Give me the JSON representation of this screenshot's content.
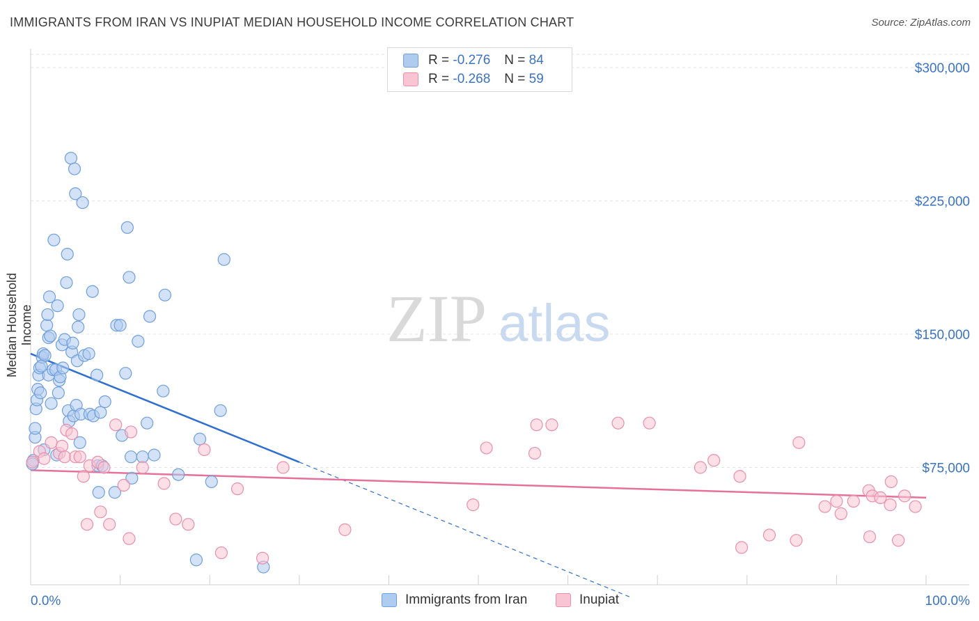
{
  "title": "IMMIGRANTS FROM IRAN VS INUPIAT MEDIAN HOUSEHOLD INCOME CORRELATION CHART",
  "source": "Source: ZipAtlas.com",
  "watermark": {
    "zip": "ZIP",
    "atlas": "atlas"
  },
  "legend": {
    "rows": [
      {
        "r_label": "R =",
        "r_value": "-0.276",
        "n_label": "N =",
        "n_value": "84",
        "color": "#aecbf0",
        "border": "#6f9fdc"
      },
      {
        "r_label": "R =",
        "r_value": "-0.268",
        "n_label": "N =",
        "n_value": "59",
        "color": "#f9c4d4",
        "border": "#e98fab"
      }
    ]
  },
  "bottom_legend": [
    {
      "label": "Immigrants from Iran",
      "color": "#aecbf0",
      "border": "#6f9fdc"
    },
    {
      "label": "Inupiat",
      "color": "#f9c4d4",
      "border": "#e98fab"
    }
  ],
  "chart_data": {
    "type": "scatter",
    "xlabel": "",
    "ylabel": "Median Household Income",
    "xlim": [
      0,
      100
    ],
    "ylim": [
      0,
      310000
    ],
    "x_tick_labels": [
      "0.0%",
      "100.0%"
    ],
    "y_ticks": [
      75000,
      150000,
      225000,
      300000
    ],
    "y_tick_labels": [
      "$75,000",
      "$150,000",
      "$225,000",
      "$300,000"
    ],
    "grid": true,
    "series": [
      {
        "name": "Immigrants from Iran",
        "color": "#6f9fdc",
        "fill": "#aecbf0",
        "trend": {
          "x0": 0,
          "y0": 139000,
          "x1": 30,
          "y1": 78000,
          "dash_x1": 67,
          "dash_y1": 2000,
          "color": "#2f6fd0"
        },
        "points": [
          [
            0.3,
            79000
          ],
          [
            0.5,
            92000
          ],
          [
            0.5,
            97000
          ],
          [
            0.6,
            108000
          ],
          [
            0.7,
            113000
          ],
          [
            0.8,
            119000
          ],
          [
            0.9,
            127000
          ],
          [
            1.0,
            131000
          ],
          [
            1.1,
            117000
          ],
          [
            1.3,
            137000
          ],
          [
            1.4,
            139000
          ],
          [
            1.5,
            85000
          ],
          [
            1.6,
            138000
          ],
          [
            1.8,
            155000
          ],
          [
            1.9,
            161000
          ],
          [
            2.0,
            127000
          ],
          [
            2.0,
            148000
          ],
          [
            2.1,
            171000
          ],
          [
            2.2,
            149000
          ],
          [
            2.3,
            111000
          ],
          [
            2.5,
            130000
          ],
          [
            2.6,
            203000
          ],
          [
            2.8,
            130000
          ],
          [
            2.9,
            82000
          ],
          [
            3.0,
            166000
          ],
          [
            3.1,
            117000
          ],
          [
            3.2,
            124000
          ],
          [
            3.3,
            126000
          ],
          [
            3.5,
            144000
          ],
          [
            3.6,
            131000
          ],
          [
            3.8,
            147000
          ],
          [
            4.0,
            179000
          ],
          [
            4.1,
            195000
          ],
          [
            4.2,
            107000
          ],
          [
            4.3,
            101000
          ],
          [
            4.5,
            249000
          ],
          [
            4.6,
            140000
          ],
          [
            4.7,
            145000
          ],
          [
            4.8,
            104000
          ],
          [
            4.9,
            243000
          ],
          [
            5.0,
            229000
          ],
          [
            5.1,
            110000
          ],
          [
            5.2,
            135000
          ],
          [
            5.3,
            154000
          ],
          [
            5.4,
            161000
          ],
          [
            5.5,
            89000
          ],
          [
            5.6,
            105000
          ],
          [
            5.8,
            224000
          ],
          [
            6.0,
            138000
          ],
          [
            6.5,
            139000
          ],
          [
            6.6,
            105000
          ],
          [
            6.9,
            174000
          ],
          [
            7.0,
            104000
          ],
          [
            7.4,
            127000
          ],
          [
            7.5,
            76000
          ],
          [
            7.6,
            61000
          ],
          [
            7.8,
            106000
          ],
          [
            8.3,
            112000
          ],
          [
            9.4,
            61000
          ],
          [
            9.6,
            155000
          ],
          [
            10.0,
            155000
          ],
          [
            10.2,
            93000
          ],
          [
            10.6,
            128000
          ],
          [
            10.8,
            210000
          ],
          [
            11.0,
            182000
          ],
          [
            11.2,
            81000
          ],
          [
            11.3,
            69000
          ],
          [
            12.0,
            146000
          ],
          [
            12.5,
            81000
          ],
          [
            13.0,
            100000
          ],
          [
            13.3,
            160000
          ],
          [
            13.8,
            82000
          ],
          [
            14.8,
            118000
          ],
          [
            15.0,
            172000
          ],
          [
            16.5,
            71000
          ],
          [
            18.5,
            23000
          ],
          [
            18.9,
            91000
          ],
          [
            20.2,
            67000
          ],
          [
            21.2,
            107000
          ],
          [
            21.6,
            192000
          ],
          [
            26.0,
            19000
          ],
          [
            0.2,
            77000
          ],
          [
            8.0,
            76000
          ],
          [
            1.2,
            132000
          ]
        ]
      },
      {
        "name": "Inupiat",
        "color": "#e98fab",
        "fill": "#f9c4d4",
        "trend": {
          "x0": 0,
          "y0": 73500,
          "x1": 100,
          "y1": 58000,
          "color": "#e5719a"
        },
        "points": [
          [
            0.2,
            78000
          ],
          [
            1.0,
            84000
          ],
          [
            1.5,
            80000
          ],
          [
            2.3,
            89000
          ],
          [
            3.2,
            83000
          ],
          [
            3.5,
            87000
          ],
          [
            3.8,
            81000
          ],
          [
            4.0,
            96000
          ],
          [
            4.6,
            94000
          ],
          [
            5.0,
            81000
          ],
          [
            5.5,
            81000
          ],
          [
            5.9,
            70000
          ],
          [
            6.3,
            43000
          ],
          [
            6.6,
            76000
          ],
          [
            7.5,
            78000
          ],
          [
            7.8,
            50000
          ],
          [
            8.2,
            75000
          ],
          [
            8.8,
            43000
          ],
          [
            9.5,
            99000
          ],
          [
            10.4,
            65000
          ],
          [
            11.0,
            35000
          ],
          [
            11.2,
            95000
          ],
          [
            12.5,
            75000
          ],
          [
            14.9,
            66000
          ],
          [
            16.2,
            46000
          ],
          [
            17.6,
            43000
          ],
          [
            19.4,
            85000
          ],
          [
            21.3,
            27000
          ],
          [
            23.1,
            63000
          ],
          [
            25.9,
            24000
          ],
          [
            28.2,
            75000
          ],
          [
            35.1,
            40000
          ],
          [
            49.4,
            54000
          ],
          [
            50.9,
            86000
          ],
          [
            56.3,
            83000
          ],
          [
            56.5,
            99000
          ],
          [
            58.2,
            99000
          ],
          [
            65.6,
            100000
          ],
          [
            69.1,
            100000
          ],
          [
            74.8,
            75000
          ],
          [
            76.3,
            79000
          ],
          [
            79.2,
            70000
          ],
          [
            79.4,
            30000
          ],
          [
            82.5,
            37000
          ],
          [
            85.5,
            34000
          ],
          [
            85.8,
            89000
          ],
          [
            88.7,
            53000
          ],
          [
            90.0,
            56000
          ],
          [
            90.5,
            49000
          ],
          [
            91.9,
            56000
          ],
          [
            93.6,
            62000
          ],
          [
            93.7,
            36000
          ],
          [
            94.0,
            59000
          ],
          [
            94.9,
            58000
          ],
          [
            96.0,
            54000
          ],
          [
            96.1,
            67000
          ],
          [
            96.9,
            34000
          ],
          [
            97.6,
            59000
          ],
          [
            98.8,
            53000
          ]
        ]
      }
    ]
  }
}
